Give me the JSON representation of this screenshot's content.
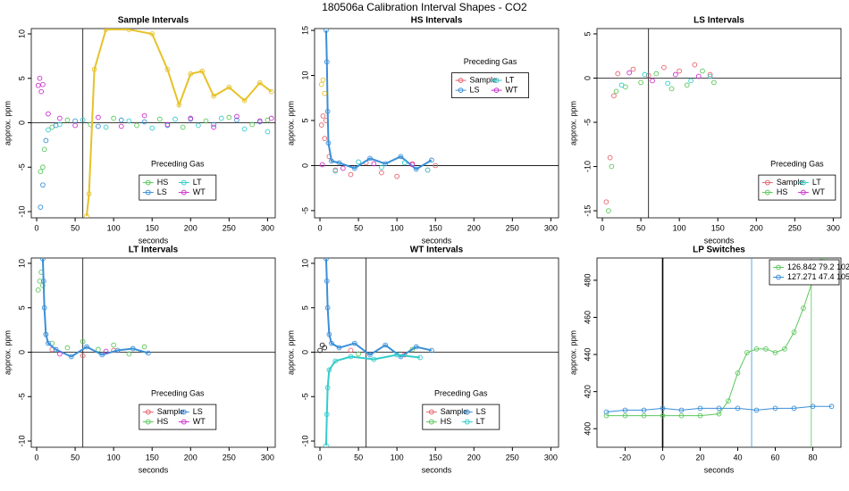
{
  "title": "180506a   Calibration Interval Shapes - CO2",
  "chart_data": [
    {
      "type": "scatter",
      "title": "Sample Intervals",
      "xlabel": "seconds",
      "ylabel": "approx. ppm",
      "xlim": [
        -7,
        310
      ],
      "ylim": [
        -10.7,
        10.6
      ],
      "xticks": [
        0,
        50,
        100,
        150,
        200,
        250,
        300
      ],
      "yticks": [
        -10,
        -5,
        0,
        5,
        10
      ],
      "vlines": [
        {
          "x": 60,
          "color": "#000000"
        }
      ],
      "hlines": [
        0
      ],
      "legend": "bottom",
      "legend_title": "Preceding Gas",
      "series": [
        {
          "name": "HS",
          "color": "#5cc85c",
          "x": [
            5,
            8,
            10,
            20,
            40,
            70,
            100,
            130,
            160,
            190,
            220,
            250,
            280,
            300
          ],
          "y": [
            -5.5,
            -5,
            -3,
            -0.5,
            0.3,
            -0.2,
            0.5,
            -0.3,
            0.4,
            -0.5,
            0.2,
            0.6,
            -0.2,
            0.3
          ]
        },
        {
          "name": "LS",
          "color": "#3a8fd8",
          "x": [
            5,
            8,
            12,
            25,
            50,
            80,
            110,
            140,
            170,
            200,
            230,
            260,
            290
          ],
          "y": [
            -9.5,
            -7,
            -2,
            -0.3,
            0.2,
            -0.4,
            0.3,
            0.1,
            -0.3,
            0.4,
            -0.2,
            0.3,
            0.1
          ]
        },
        {
          "name": "LT",
          "color": "#33cccc",
          "x": [
            15,
            30,
            60,
            90,
            120,
            150,
            180,
            210,
            240,
            270,
            300
          ],
          "y": [
            -0.8,
            -0.2,
            0.3,
            -0.5,
            0.2,
            -0.6,
            0.4,
            -0.3,
            0.5,
            -0.7,
            -1
          ]
        },
        {
          "name": "WT",
          "color": "#cc33cc",
          "x": [
            2,
            4,
            6,
            8,
            15,
            30,
            50,
            80,
            110,
            140,
            170,
            200,
            230,
            260,
            290,
            305
          ],
          "y": [
            4.2,
            5,
            3.5,
            4.3,
            1,
            0.5,
            -0.3,
            0.6,
            -0.4,
            0.8,
            -0.2,
            0.5,
            -0.5,
            0.7,
            0.2,
            0.5
          ]
        },
        {
          "color": "#e6c229",
          "lines": true,
          "x": [
            65,
            68,
            75,
            90,
            120,
            150,
            170,
            185,
            200,
            215,
            230,
            250,
            270,
            290,
            305
          ],
          "y": [
            -10.5,
            -8,
            6,
            10.5,
            10.5,
            10,
            6,
            2,
            5.5,
            5.8,
            3,
            4,
            2.5,
            4.5,
            3.5
          ]
        }
      ]
    },
    {
      "type": "scatter",
      "title": "HS Intervals",
      "xlabel": "seconds",
      "ylabel": "approx. ppm",
      "xlim": [
        -7,
        310
      ],
      "ylim": [
        -5.8,
        15.2
      ],
      "xticks": [
        0,
        50,
        100,
        150,
        200,
        250,
        300
      ],
      "yticks": [
        -5,
        0,
        5,
        10,
        15
      ],
      "hlines": [
        0
      ],
      "legend": "top",
      "legend_title": "Preceding Gas",
      "series": [
        {
          "name": "Sample",
          "color": "#e8646e",
          "x": [
            2,
            4,
            6,
            8,
            12,
            20,
            40,
            60,
            80,
            100,
            120,
            140,
            150
          ],
          "y": [
            4.5,
            5.5,
            3,
            5,
            1,
            -0.5,
            -1,
            0.3,
            -0.8,
            -1.2,
            0.2,
            -0.5,
            0
          ]
        },
        {
          "name": "LS",
          "color": "#3a8fd8",
          "lines": true,
          "x": [
            8,
            9,
            10,
            11,
            15,
            25,
            45,
            65,
            85,
            105,
            125,
            145
          ],
          "y": [
            15,
            11.5,
            6,
            2.5,
            0.5,
            0.3,
            -0.3,
            0.8,
            0.2,
            1,
            -0.4,
            0.6
          ]
        },
        {
          "name": "LT",
          "color": "#33cccc",
          "x": [
            20,
            50,
            80,
            110,
            140
          ],
          "y": [
            -0.6,
            0.4,
            -0.2,
            0.3,
            -0.5
          ]
        },
        {
          "name": "WT",
          "color": "#cc33cc",
          "x": [
            3,
            30,
            70,
            120
          ],
          "y": [
            0.1,
            -0.3,
            0.2,
            0.1
          ]
        },
        {
          "color": "#e6c229",
          "x": [
            2,
            4,
            6
          ],
          "y": [
            9,
            9.5,
            8
          ]
        }
      ]
    },
    {
      "type": "scatter",
      "title": "LS Intervals",
      "xlabel": "seconds",
      "ylabel": "approx. ppm",
      "xlim": [
        -7,
        310
      ],
      "ylim": [
        -15.8,
        5.6
      ],
      "xticks": [
        0,
        50,
        100,
        150,
        200,
        250,
        300
      ],
      "yticks": [
        -15,
        -10,
        -5,
        0,
        5
      ],
      "vlines": [
        {
          "x": 60,
          "color": "#000000"
        }
      ],
      "hlines": [
        0
      ],
      "legend": "bottom-right",
      "legend_title": "Preceding Gas",
      "series": [
        {
          "name": "Sample",
          "color": "#e8646e",
          "x": [
            5,
            10,
            15,
            20,
            40,
            60,
            80,
            100,
            120,
            140
          ],
          "y": [
            -14,
            -9,
            -2,
            0.5,
            1,
            0.3,
            1.2,
            0.8,
            1.5,
            0.4
          ]
        },
        {
          "name": "HS",
          "color": "#5cc85c",
          "x": [
            8,
            12,
            18,
            30,
            50,
            70,
            90,
            110,
            130,
            145
          ],
          "y": [
            -15,
            -10,
            -1.5,
            -1,
            -0.5,
            0.5,
            -1.2,
            -0.8,
            0.8,
            -0.5
          ]
        },
        {
          "name": "LT",
          "color": "#33cccc",
          "x": [
            25,
            55,
            85,
            115,
            140
          ],
          "y": [
            -0.8,
            0.4,
            -0.6,
            -0.3,
            0.2
          ]
        },
        {
          "name": "WT",
          "color": "#cc33cc",
          "x": [
            35,
            65,
            95,
            125
          ],
          "y": [
            0.6,
            -0.3,
            0.4,
            0.2
          ]
        }
      ]
    },
    {
      "type": "scatter",
      "title": "LT Intervals",
      "xlabel": "seconds",
      "ylabel": "approx. ppm",
      "xlim": [
        -7,
        310
      ],
      "ylim": [
        -10.7,
        10.6
      ],
      "xticks": [
        0,
        50,
        100,
        150,
        200,
        250,
        300
      ],
      "yticks": [
        -10,
        -5,
        0,
        5,
        10
      ],
      "vlines": [
        {
          "x": 60,
          "color": "#000000"
        }
      ],
      "hlines": [
        0
      ],
      "legend": "bottom",
      "legend_title": "Preceding Gas",
      "series": [
        {
          "name": "Sample",
          "color": "#e8646e",
          "x": [
            20,
            60,
            100
          ],
          "y": [
            0.3,
            -0.4,
            0.2
          ]
        },
        {
          "name": "HS",
          "color": "#5cc85c",
          "x": [
            2,
            4,
            6,
            8,
            12,
            20,
            40,
            60,
            80,
            100,
            120,
            140
          ],
          "y": [
            7,
            8,
            9,
            7.5,
            2,
            1,
            0.5,
            1.2,
            0.3,
            0.8,
            -0.2,
            0.6
          ]
        },
        {
          "name": "LS",
          "color": "#3a8fd8",
          "lines": true,
          "x": [
            8,
            9,
            10,
            12,
            15,
            25,
            45,
            65,
            85,
            105,
            125,
            145
          ],
          "y": [
            10.5,
            8,
            5,
            2,
            1,
            0.3,
            -0.5,
            0.6,
            -0.3,
            0.2,
            0.4,
            -0.1
          ]
        },
        {
          "name": "WT",
          "color": "#cc33cc",
          "x": [
            30,
            90
          ],
          "y": [
            -0.2,
            0.1
          ]
        }
      ]
    },
    {
      "type": "scatter",
      "title": "WT Intervals",
      "xlabel": "seconds",
      "ylabel": "approx. ppm",
      "xlim": [
        -7,
        310
      ],
      "ylim": [
        -10.7,
        10.6
      ],
      "xticks": [
        0,
        50,
        100,
        150,
        200,
        250,
        300
      ],
      "yticks": [
        -10,
        -5,
        0,
        5,
        10
      ],
      "vlines": [
        {
          "x": 60,
          "color": "#000000"
        }
      ],
      "hlines": [
        0
      ],
      "legend": "bottom",
      "legend_title": "Preceding Gas",
      "series": [
        {
          "name": "Sample",
          "color": "#e8646e",
          "x": [
            40,
            110
          ],
          "y": [
            0.2,
            -0.3
          ]
        },
        {
          "name": "HS",
          "color": "#5cc85c",
          "x": [
            50,
            120
          ],
          "y": [
            -0.2,
            0.3
          ]
        },
        {
          "name": "LS",
          "color": "#3a8fd8",
          "lines": true,
          "x": [
            8,
            9,
            10,
            12,
            15,
            25,
            45,
            65,
            85,
            105,
            125,
            145
          ],
          "y": [
            10.5,
            8,
            5,
            2,
            1,
            0.5,
            1,
            -0.3,
            0.8,
            -0.5,
            0.6,
            0.2
          ]
        },
        {
          "name": "LT",
          "color": "#33cccc",
          "lines": true,
          "x": [
            8,
            9,
            10,
            12,
            20,
            40,
            70,
            100,
            130
          ],
          "y": [
            -10.5,
            -7,
            -4,
            -2,
            -1,
            -0.5,
            -0.8,
            -0.3,
            -0.6
          ]
        },
        {
          "color": "#222222",
          "x": [
            0,
            3,
            6
          ],
          "y": [
            0.2,
            0.8,
            0.5
          ]
        }
      ]
    },
    {
      "type": "scatter",
      "title": "LP Switches",
      "xlabel": "seconds",
      "ylabel": "approx. ppm",
      "xlim": [
        -35,
        95
      ],
      "ylim": [
        390,
        492
      ],
      "xticks": [
        -20,
        0,
        20,
        40,
        60,
        80
      ],
      "yticks": [
        400,
        420,
        440,
        460,
        480
      ],
      "vlines": [
        {
          "x": 0,
          "color": "#000000"
        },
        {
          "x": 47.4,
          "color": "#3a8fd8"
        },
        {
          "x": 79.2,
          "color": "#5cc85c"
        }
      ],
      "legend": "top-right",
      "series": [
        {
          "name": "126.842 79.2 102",
          "color": "#5cc85c",
          "lines": true,
          "x": [
            -30,
            -20,
            -10,
            0,
            10,
            20,
            30,
            35,
            40,
            45,
            50,
            55,
            60,
            65,
            70,
            75,
            80,
            85
          ],
          "y": [
            407,
            407,
            407,
            407,
            407,
            407,
            408,
            415,
            430,
            441,
            443,
            443,
            441,
            443,
            452,
            465,
            480,
            492
          ]
        },
        {
          "name": "127.271 47.4 105",
          "color": "#3a8fd8",
          "lines": true,
          "x": [
            -30,
            -20,
            -10,
            0,
            10,
            20,
            30,
            40,
            50,
            60,
            70,
            80,
            90
          ],
          "y": [
            409,
            410,
            410,
            411,
            410,
            411,
            411,
            411,
            410,
            411,
            411,
            412,
            412
          ]
        }
      ]
    }
  ]
}
